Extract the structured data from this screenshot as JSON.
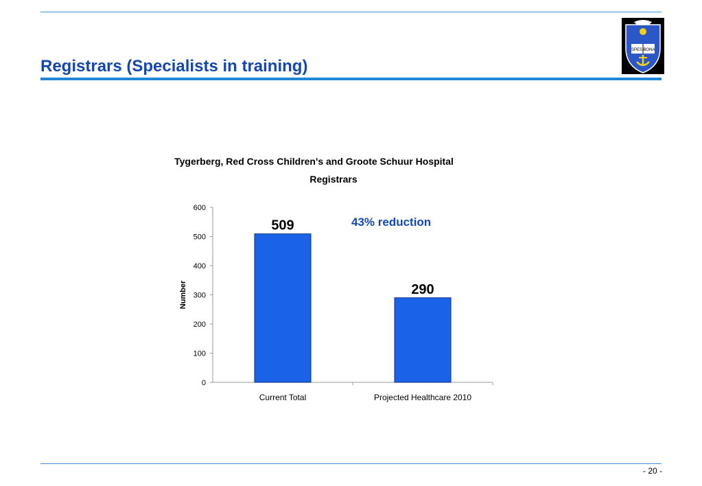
{
  "slide": {
    "title": "Registrars (Specialists in training)",
    "page_number": "- 20 -",
    "accent_color": "#1f86d9",
    "title_color": "#1747a6"
  },
  "logo": {
    "motto": "SPES BONA"
  },
  "chart_data": {
    "type": "bar",
    "title": "Tygerberg, Red Cross Children's and Groote Schuur Hospital",
    "subtitle": "Registrars",
    "categories": [
      "Current Total",
      "Projected Healthcare 2010"
    ],
    "values": [
      509,
      290
    ],
    "data_labels": [
      "509",
      "290"
    ],
    "ylabel": "Number",
    "xlabel": "",
    "ylim": [
      0,
      600
    ],
    "yticks": [
      0,
      100,
      200,
      300,
      400,
      500,
      600
    ],
    "grid": false,
    "legend": "none",
    "bar_color": "#1a63e8",
    "annotation": "43% reduction",
    "annotation_color": "#1747a6"
  }
}
